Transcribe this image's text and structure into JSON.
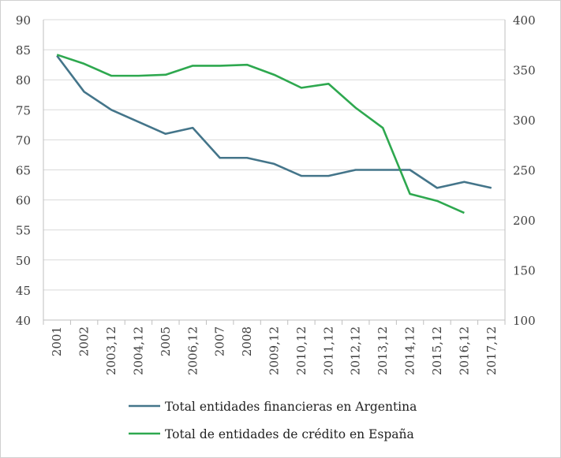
{
  "chart_data": {
    "type": "line",
    "categories": [
      "2001",
      "2002",
      "2003,12",
      "2004,12",
      "2005",
      "2006,12",
      "2007",
      "2008",
      "2009,12",
      "2010,12",
      "2011,12",
      "2012,12",
      "2013,12",
      "2014,12",
      "2015,12",
      "2016,12",
      "2017,12"
    ],
    "y_left": {
      "range": [
        40,
        90
      ],
      "ticks": [
        40,
        45,
        50,
        55,
        60,
        65,
        70,
        75,
        80,
        85,
        90
      ]
    },
    "y_right": {
      "range": [
        100,
        400
      ],
      "ticks": [
        100,
        150,
        200,
        250,
        300,
        350,
        400
      ]
    },
    "grid": true,
    "legend_position": "bottom",
    "series": [
      {
        "name": "Total entidades financieras en Argentina",
        "axis": "left",
        "color": "#44758A",
        "values": [
          84,
          78,
          75,
          73,
          71,
          72,
          67,
          67,
          66,
          64,
          64,
          65,
          65,
          65,
          62,
          63,
          62
        ]
      },
      {
        "name": "Total de entidades de crédito en España",
        "axis": "right",
        "color": "#2EA84F",
        "values": [
          365,
          356,
          344,
          344,
          345,
          354,
          354,
          355,
          345,
          332,
          336,
          312,
          292,
          226,
          219,
          207,
          null
        ]
      }
    ]
  }
}
